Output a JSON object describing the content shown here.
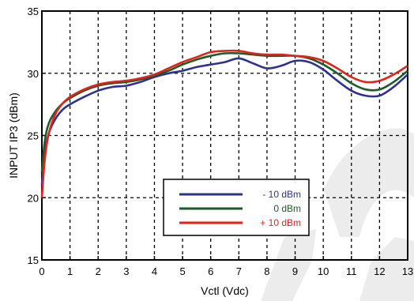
{
  "chart_data": {
    "type": "line",
    "title": "",
    "xlabel": "Vctl (Vdc)",
    "ylabel": "INPUT IP3 (dBm)",
    "xlim": [
      0,
      13
    ],
    "ylim": [
      15,
      35
    ],
    "xticks": [
      0,
      1,
      2,
      3,
      4,
      5,
      6,
      7,
      8,
      9,
      10,
      11,
      12,
      13
    ],
    "yticks": [
      15,
      20,
      25,
      30,
      35
    ],
    "grid": true,
    "legend_position": "lower-center",
    "series": [
      {
        "name": "- 10 dBm",
        "color": "#2e3192",
        "x": [
          0,
          0.1,
          0.25,
          0.5,
          0.75,
          1,
          1.5,
          2,
          2.5,
          3,
          3.5,
          4,
          4.5,
          5,
          5.5,
          6,
          6.5,
          7,
          7.5,
          8,
          8.5,
          9,
          9.5,
          10,
          10.5,
          11,
          11.5,
          12,
          12.5,
          13
        ],
        "values": [
          21,
          23.5,
          25.2,
          26.4,
          27.1,
          27.5,
          28.1,
          28.6,
          28.9,
          29.0,
          29.3,
          29.7,
          30.0,
          30.2,
          30.5,
          30.7,
          30.9,
          31.2,
          30.8,
          30.4,
          30.6,
          31.0,
          30.9,
          30.3,
          29.4,
          28.6,
          28.2,
          28.2,
          28.9,
          29.9
        ]
      },
      {
        "name": "0 dBm",
        "color": "#1e5a2a",
        "x": [
          0,
          0.1,
          0.25,
          0.5,
          0.75,
          1,
          1.5,
          2,
          2.5,
          3,
          3.5,
          4,
          4.5,
          5,
          5.5,
          6,
          6.5,
          7,
          7.5,
          8,
          8.5,
          9,
          9.5,
          10,
          10.5,
          11,
          11.5,
          12,
          12.5,
          13
        ],
        "values": [
          22,
          24.5,
          26.0,
          27.0,
          27.6,
          28.0,
          28.6,
          29.0,
          29.2,
          29.3,
          29.5,
          29.8,
          30.2,
          30.7,
          31.1,
          31.4,
          31.6,
          31.6,
          31.5,
          31.4,
          31.4,
          31.4,
          31.2,
          30.7,
          30.0,
          29.2,
          28.7,
          28.7,
          29.3,
          30.2
        ]
      },
      {
        "name": "+ 10 dBm",
        "color": "#e2231a",
        "x": [
          0,
          0.1,
          0.25,
          0.5,
          0.75,
          1,
          1.5,
          2,
          2.5,
          3,
          3.5,
          4,
          4.5,
          5,
          5.5,
          6,
          6.5,
          7,
          7.5,
          8,
          8.5,
          9,
          9.5,
          10,
          10.5,
          11,
          11.5,
          12,
          12.5,
          13
        ],
        "values": [
          20,
          23.0,
          25.2,
          26.8,
          27.6,
          28.1,
          28.7,
          29.1,
          29.3,
          29.4,
          29.6,
          29.9,
          30.4,
          30.9,
          31.3,
          31.7,
          31.8,
          31.8,
          31.6,
          31.5,
          31.5,
          31.4,
          31.3,
          31.0,
          30.4,
          29.7,
          29.3,
          29.4,
          29.9,
          30.6
        ]
      }
    ]
  }
}
